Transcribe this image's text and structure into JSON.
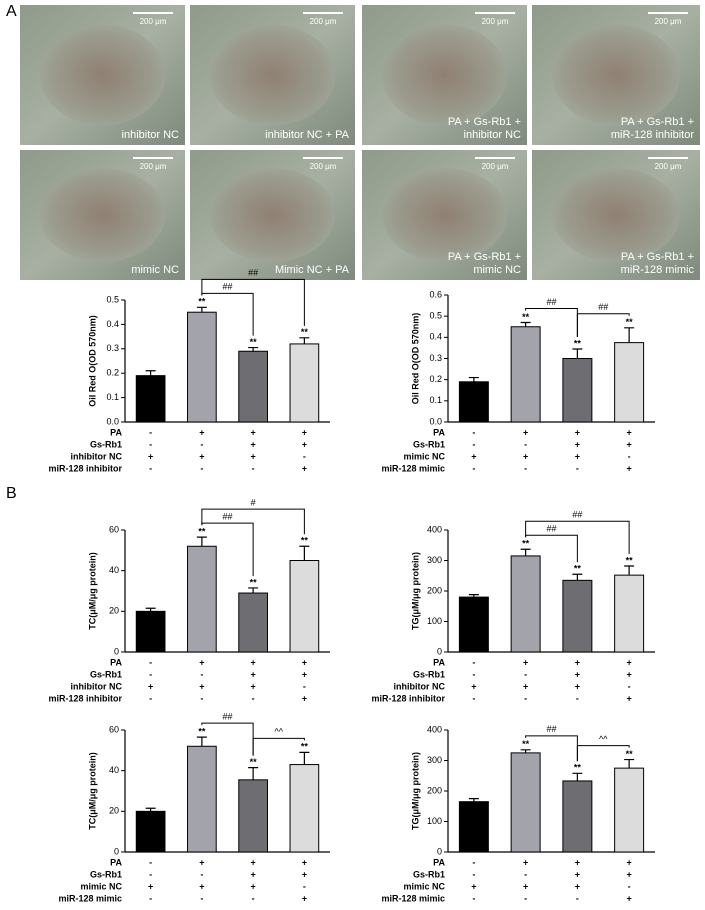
{
  "panel_labels": [
    "A",
    "B"
  ],
  "images": [
    {
      "caption": [
        "inhibitor NC"
      ],
      "scale": "200 μm"
    },
    {
      "caption": [
        "inhibitor NC + PA"
      ],
      "scale": "200 μm"
    },
    {
      "caption": [
        "PA + Gs-Rb1 +",
        "inhibitor NC"
      ],
      "scale": "200 μm"
    },
    {
      "caption": [
        "PA + Gs-Rb1 +",
        "miR-128 inhibitor"
      ],
      "scale": "200 μm"
    },
    {
      "caption": [
        "mimic NC"
      ],
      "scale": "200 μm"
    },
    {
      "caption": [
        "Mimic NC + PA"
      ],
      "scale": "200 μm"
    },
    {
      "caption": [
        "PA + Gs-Rb1 +",
        "mimic NC"
      ],
      "scale": "200 μm"
    },
    {
      "caption": [
        "PA + Gs-Rb1 +",
        "miR-128 mimic"
      ],
      "scale": "200 μm"
    }
  ],
  "chart_data": [
    {
      "type": "bar",
      "ylabel": "Oil Red O(OD 570nm)",
      "categories": [
        null,
        null,
        null,
        null
      ],
      "values": [
        0.19,
        0.45,
        0.29,
        0.32
      ],
      "errors": [
        0.02,
        0.02,
        0.015,
        0.025
      ],
      "colors": [
        "#000000",
        "#a3a3ab",
        "#6e6e72",
        "#dcdcdc"
      ],
      "ylim": [
        0,
        0.5
      ],
      "yticks": [
        {
          "value": 0,
          "label": "0.0"
        },
        0.1,
        0.2,
        0.3,
        0.4,
        0.5
      ],
      "bar_labels": [
        null,
        "**",
        "**",
        "**"
      ],
      "brackets": [
        {
          "from": 1,
          "to": 2,
          "label": "##"
        },
        {
          "from": 1,
          "to": 3,
          "label": "##"
        }
      ],
      "conditions": [
        {
          "label": "PA",
          "signs": [
            "-",
            "+",
            "+",
            "+"
          ]
        },
        {
          "label": "Gs-Rb1",
          "signs": [
            "-",
            "-",
            "+",
            "+"
          ]
        },
        {
          "label": "inhibitor NC",
          "signs": [
            "+",
            "+",
            "+",
            "-"
          ]
        },
        {
          "label": "miR-128 inhibitor",
          "signs": [
            "-",
            "-",
            "-",
            "+"
          ]
        }
      ]
    },
    {
      "type": "bar",
      "ylabel": "Oil Red O(OD 570nm)",
      "categories": [
        null,
        null,
        null,
        null
      ],
      "values": [
        0.19,
        0.45,
        0.3,
        0.375
      ],
      "errors": [
        0.02,
        0.02,
        0.045,
        0.07
      ],
      "colors": [
        "#000000",
        "#a3a3ab",
        "#6e6e72",
        "#dcdcdc"
      ],
      "ylim": [
        0,
        0.6
      ],
      "yticks": [
        {
          "value": 0,
          "label": "0.0"
        },
        0.1,
        0.2,
        0.3,
        0.4,
        0.5,
        0.6
      ],
      "bar_labels": [
        null,
        "**",
        "**",
        "**"
      ],
      "brackets": [
        {
          "from": 1,
          "to": 2,
          "label": "##"
        },
        {
          "from": 2,
          "to": 3,
          "label": "##"
        }
      ],
      "conditions": [
        {
          "label": "PA",
          "signs": [
            "-",
            "+",
            "+",
            "+"
          ]
        },
        {
          "label": "Gs-Rb1",
          "signs": [
            "-",
            "-",
            "+",
            "+"
          ]
        },
        {
          "label": "mimic NC",
          "signs": [
            "+",
            "+",
            "+",
            "-"
          ]
        },
        {
          "label": "miR-128 mimic",
          "signs": [
            "-",
            "-",
            "-",
            "+"
          ]
        }
      ]
    },
    {
      "type": "bar",
      "ylabel": "TC(μM/μg protein)",
      "categories": [
        null,
        null,
        null,
        null
      ],
      "values": [
        20,
        52,
        29,
        45
      ],
      "errors": [
        1.5,
        4.5,
        2.5,
        7
      ],
      "colors": [
        "#000000",
        "#a3a3ab",
        "#6e6e72",
        "#dcdcdc"
      ],
      "ylim": [
        0,
        60
      ],
      "yticks": [
        0,
        20,
        40,
        60
      ],
      "bar_labels": [
        null,
        "**",
        "**",
        "**"
      ],
      "brackets": [
        {
          "from": 1,
          "to": 2,
          "label": "##"
        },
        {
          "from": 1,
          "to": 3,
          "label": "#"
        }
      ],
      "conditions": [
        {
          "label": "PA",
          "signs": [
            "-",
            "+",
            "+",
            "+"
          ]
        },
        {
          "label": "Gs-Rb1",
          "signs": [
            "-",
            "-",
            "+",
            "+"
          ]
        },
        {
          "label": "inhibitor NC",
          "signs": [
            "+",
            "+",
            "+",
            "-"
          ]
        },
        {
          "label": "miR-128 inhibitor",
          "signs": [
            "-",
            "-",
            "-",
            "+"
          ]
        }
      ]
    },
    {
      "type": "bar",
      "ylabel": "TG(μM/μg protein)",
      "categories": [
        null,
        null,
        null,
        null
      ],
      "values": [
        180,
        315,
        235,
        252
      ],
      "errors": [
        8,
        22,
        20,
        30
      ],
      "colors": [
        "#000000",
        "#a3a3ab",
        "#6e6e72",
        "#dcdcdc"
      ],
      "ylim": [
        0,
        400
      ],
      "yticks": [
        0,
        100,
        200,
        300,
        400
      ],
      "bar_labels": [
        null,
        "**",
        "**",
        "**"
      ],
      "brackets": [
        {
          "from": 1,
          "to": 2,
          "label": "##"
        },
        {
          "from": 1,
          "to": 3,
          "label": "##"
        }
      ],
      "conditions": [
        {
          "label": "PA",
          "signs": [
            "-",
            "+",
            "+",
            "+"
          ]
        },
        {
          "label": "Gs-Rb1",
          "signs": [
            "-",
            "-",
            "+",
            "+"
          ]
        },
        {
          "label": "inhibitor NC",
          "signs": [
            "+",
            "+",
            "+",
            "-"
          ]
        },
        {
          "label": "miR-128 inhibitor",
          "signs": [
            "-",
            "-",
            "-",
            "+"
          ]
        }
      ]
    },
    {
      "type": "bar",
      "ylabel": "TC(μM/μg protein)",
      "categories": [
        null,
        null,
        null,
        null
      ],
      "values": [
        20,
        52,
        35.5,
        43
      ],
      "errors": [
        1.5,
        4.5,
        6,
        6
      ],
      "colors": [
        "#000000",
        "#a3a3ab",
        "#6e6e72",
        "#dcdcdc"
      ],
      "ylim": [
        0,
        60
      ],
      "yticks": [
        0,
        20,
        40,
        60
      ],
      "bar_labels": [
        null,
        "**",
        "**",
        "**"
      ],
      "brackets": [
        {
          "from": 1,
          "to": 2,
          "label": "##"
        },
        {
          "from": 2,
          "to": 3,
          "label": "^^"
        }
      ],
      "conditions": [
        {
          "label": "PA",
          "signs": [
            "-",
            "+",
            "+",
            "+"
          ]
        },
        {
          "label": "Gs-Rb1",
          "signs": [
            "-",
            "-",
            "+",
            "+"
          ]
        },
        {
          "label": "mimic NC",
          "signs": [
            "+",
            "+",
            "+",
            "-"
          ]
        },
        {
          "label": "miR-128 mimic",
          "signs": [
            "-",
            "-",
            "-",
            "+"
          ]
        }
      ]
    },
    {
      "type": "bar",
      "ylabel": "TG(μM/μg protein)",
      "categories": [
        null,
        null,
        null,
        null
      ],
      "values": [
        165,
        325,
        233,
        275
      ],
      "errors": [
        10,
        10,
        25,
        28
      ],
      "colors": [
        "#000000",
        "#a3a3ab",
        "#6e6e72",
        "#dcdcdc"
      ],
      "ylim": [
        0,
        400
      ],
      "yticks": [
        0,
        100,
        200,
        300,
        400
      ],
      "bar_labels": [
        null,
        "**",
        "**",
        "**"
      ],
      "brackets": [
        {
          "from": 1,
          "to": 2,
          "label": "##"
        },
        {
          "from": 2,
          "to": 3,
          "label": "^^"
        }
      ],
      "conditions": [
        {
          "label": "PA",
          "signs": [
            "-",
            "+",
            "+",
            "+"
          ]
        },
        {
          "label": "Gs-Rb1",
          "signs": [
            "-",
            "-",
            "+",
            "+"
          ]
        },
        {
          "label": "mimic NC",
          "signs": [
            "+",
            "+",
            "+",
            "-"
          ]
        },
        {
          "label": "miR-128 mimic",
          "signs": [
            "-",
            "-",
            "-",
            "+"
          ]
        }
      ]
    }
  ]
}
